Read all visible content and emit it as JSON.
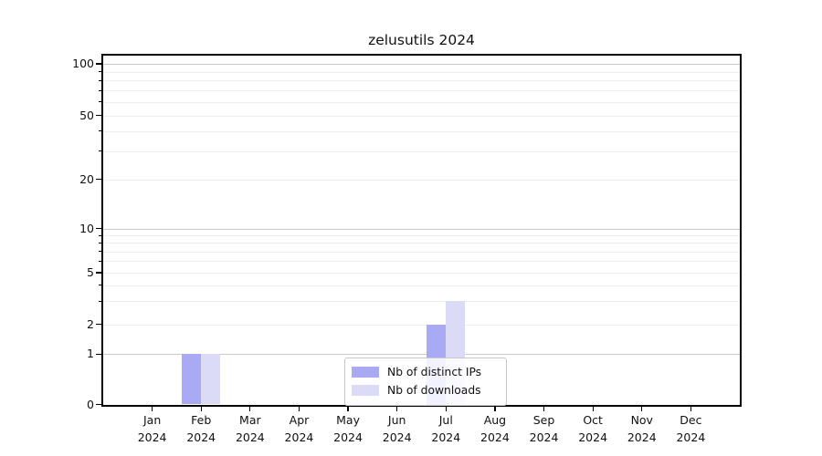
{
  "chart_data": {
    "type": "bar",
    "title": "zelusutils 2024",
    "categories": [
      "Jan",
      "Feb",
      "Mar",
      "Apr",
      "May",
      "Jun",
      "Jul",
      "Aug",
      "Sep",
      "Oct",
      "Nov",
      "Dec"
    ],
    "category_year": "2024",
    "series": [
      {
        "name": "Nb of distinct IPs",
        "color": "#a9a9f4",
        "values": [
          0,
          1,
          0,
          0,
          0,
          0,
          2,
          0,
          0,
          0,
          0,
          0
        ]
      },
      {
        "name": "Nb of downloads",
        "color": "#dbdbf7",
        "values": [
          0,
          1,
          0,
          0,
          0,
          0,
          3,
          0,
          0,
          0,
          0,
          0
        ]
      }
    ],
    "y_axis": {
      "scale": "log-like",
      "tick_labels": [
        0,
        1,
        2,
        5,
        10,
        20,
        50,
        100
      ],
      "major_gridlines": [
        1,
        10,
        100
      ],
      "minor_gridlines": [
        2,
        3,
        4,
        5,
        6,
        7,
        8,
        9,
        20,
        30,
        40,
        50,
        60,
        70,
        80,
        90
      ],
      "ylim": [
        0,
        115
      ]
    },
    "legend": {
      "position": "bottom-center"
    },
    "colors": {
      "major_grid": "#c8c8c8",
      "minor_grid": "#efefef",
      "axis": "#000000",
      "background": "#ffffff",
      "text": "#111111"
    }
  }
}
